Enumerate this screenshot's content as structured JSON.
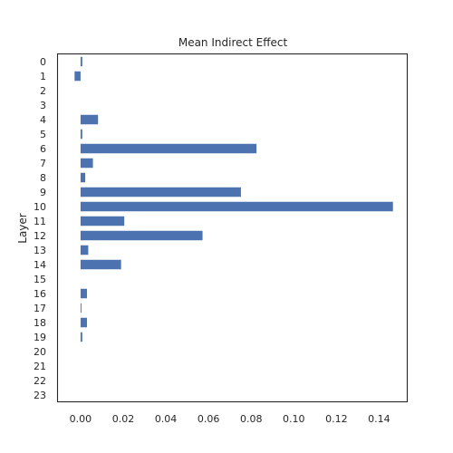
{
  "chart_data": {
    "type": "bar",
    "orientation": "horizontal",
    "title": "Mean Indirect Effect",
    "xlabel": "",
    "ylabel": "Layer",
    "categories": [
      "0",
      "1",
      "2",
      "3",
      "4",
      "5",
      "6",
      "7",
      "8",
      "9",
      "10",
      "11",
      "12",
      "13",
      "14",
      "15",
      "16",
      "17",
      "18",
      "19",
      "20",
      "21",
      "22",
      "23"
    ],
    "values": [
      0.0008,
      -0.0028,
      0,
      0,
      0.0082,
      0.0008,
      0.0825,
      0.0058,
      0.0022,
      0.0752,
      0.1465,
      0.0205,
      0.0572,
      0.0036,
      0.019,
      0,
      0.003,
      0.0004,
      0.003,
      0.0008,
      0,
      0,
      0,
      0
    ],
    "xlim": [
      -0.0108,
      0.1532
    ],
    "xticks": [
      0.0,
      0.02,
      0.04,
      0.06,
      0.08,
      0.1,
      0.12,
      0.14
    ],
    "xtick_labels": [
      "0.00",
      "0.02",
      "0.04",
      "0.06",
      "0.08",
      "0.10",
      "0.12",
      "0.14"
    ],
    "grid": false,
    "bar_color": "#4c72b0"
  }
}
